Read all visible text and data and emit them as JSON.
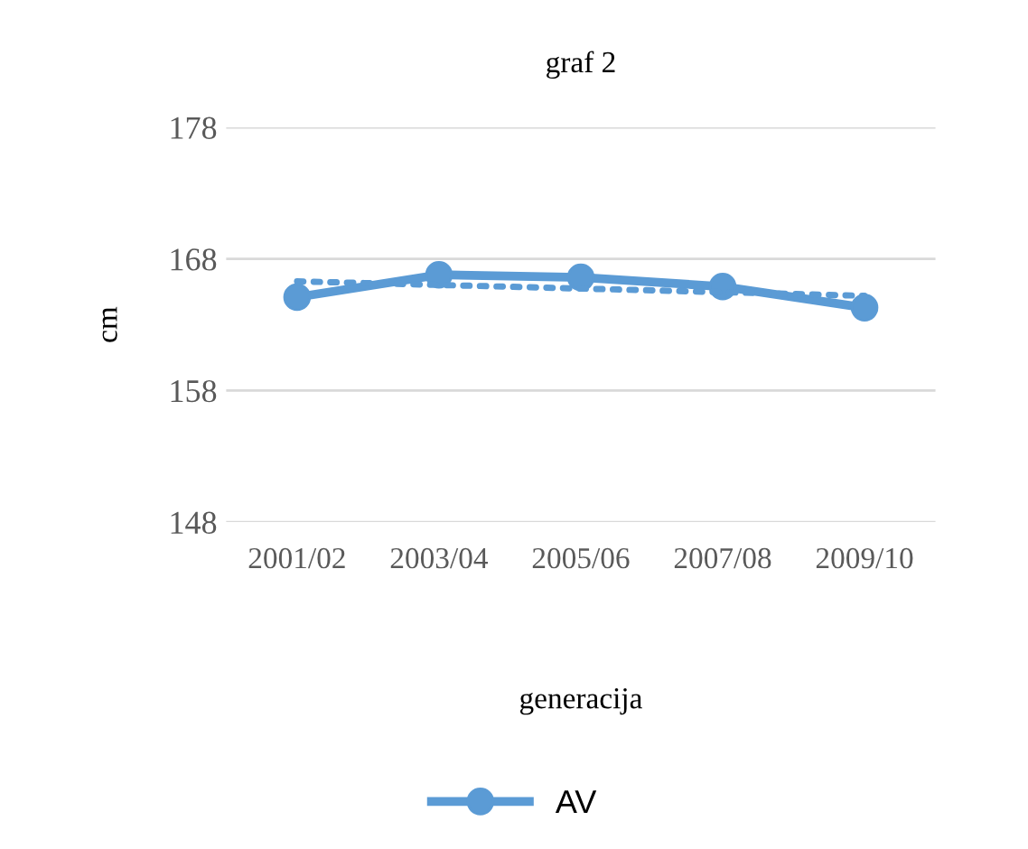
{
  "chart_data": {
    "type": "line",
    "title": "graf 2",
    "xlabel": "generacija",
    "ylabel": "cm",
    "categories": [
      "2001/02",
      "2003/04",
      "2005/06",
      "2007/08",
      "2009/10"
    ],
    "series": [
      {
        "name": "AV",
        "color": "#5b9bd5",
        "values": [
          165.1,
          166.8,
          166.6,
          165.9,
          164.3
        ],
        "marker": "circle",
        "line_style": "solid"
      },
      {
        "color": "#5b9bd5",
        "values": [
          166.3,
          null,
          null,
          null,
          165.2
        ],
        "marker": "none",
        "line_style": "dotted"
      }
    ],
    "ylim": [
      148,
      178
    ],
    "yticks": [
      148,
      158,
      168,
      178
    ],
    "grid": "y",
    "legend": "bottom"
  }
}
